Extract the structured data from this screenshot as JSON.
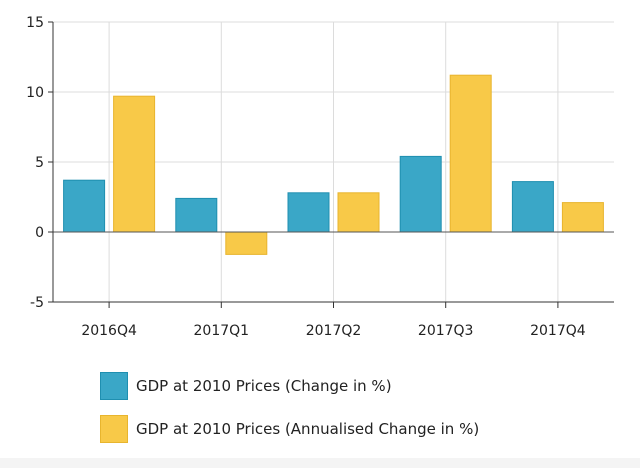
{
  "chart_data": {
    "type": "bar",
    "categories": [
      "2016Q4",
      "2017Q1",
      "2017Q2",
      "2017Q3",
      "2017Q4"
    ],
    "series": [
      {
        "name": "GDP at 2010 Prices (Change in %)",
        "values": [
          3.7,
          2.4,
          2.8,
          5.4,
          3.6
        ],
        "color": "#3aa7c7",
        "stroke": "#1f8fb0"
      },
      {
        "name": "GDP at 2010 Prices (Annualised Change in %)",
        "values": [
          9.7,
          -1.6,
          2.8,
          11.2,
          2.1
        ],
        "color": "#f8c948",
        "stroke": "#e8b52e"
      }
    ],
    "ylim": [
      -5,
      15
    ],
    "yticks": [
      -5,
      0,
      5,
      10,
      15
    ],
    "grid": true,
    "legend": "bottom",
    "title": "",
    "xlabel": "",
    "ylabel": ""
  }
}
